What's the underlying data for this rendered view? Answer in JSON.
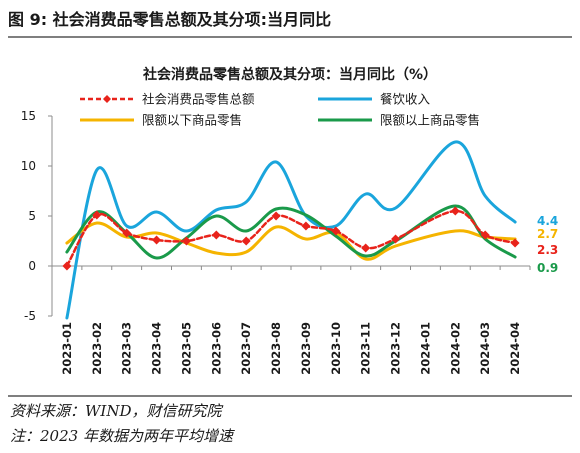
{
  "figure": {
    "title": "图 9:  社会消费品零售总额及其分项:当月同比",
    "source": "资料来源：WIND，财信研究院",
    "note": "注：2023 年数据为两年平均增速"
  },
  "chart_data": {
    "type": "line",
    "title": "社会消费品零售总额及其分项：当月同比（%）",
    "xlabel": "",
    "ylabel": "",
    "ylim": [
      -5,
      15
    ],
    "yticks": [
      -5,
      0,
      5,
      10,
      15
    ],
    "grid": false,
    "legend_position": "top",
    "categories": [
      "2023-01",
      "2023-02",
      "2023-03",
      "2023-04",
      "2023-05",
      "2023-06",
      "2023-07",
      "2023-08",
      "2023-09",
      "2023-10",
      "2023-11",
      "2023-12",
      "2024-01",
      "2024-02",
      "2024-03",
      "2024-04"
    ],
    "series": [
      {
        "name": "社会消费品零售总额",
        "color": "#e8231b",
        "style": "dashed-diamond",
        "values": [
          0,
          5.1,
          3.3,
          2.6,
          2.5,
          3.1,
          2.5,
          5.0,
          4.0,
          3.5,
          1.8,
          2.7,
          null,
          5.5,
          3.1,
          2.3
        ]
      },
      {
        "name": "餐饮收入",
        "color": "#1aa5dc",
        "style": "solid",
        "values": [
          -5.2,
          9.6,
          4.0,
          5.4,
          3.5,
          5.6,
          6.4,
          10.4,
          5.0,
          4.0,
          7.2,
          5.8,
          null,
          12.4,
          7.0,
          4.4
        ]
      },
      {
        "name": "限额以下商品零售",
        "color": "#f5b400",
        "style": "solid",
        "values": [
          2.3,
          4.3,
          2.9,
          3.3,
          2.3,
          1.3,
          1.4,
          3.9,
          2.7,
          3.3,
          0.7,
          2.0,
          null,
          3.5,
          2.9,
          2.7
        ]
      },
      {
        "name": "限额以上商品零售",
        "color": "#1a9a4a",
        "style": "solid",
        "values": [
          1.4,
          5.4,
          3.3,
          0.8,
          2.8,
          5.0,
          3.5,
          5.7,
          5.1,
          3.0,
          1.0,
          2.5,
          null,
          6.0,
          2.7,
          0.9
        ]
      }
    ],
    "end_labels": [
      {
        "text": "4.4",
        "color": "#1aa5dc"
      },
      {
        "text": "2.7",
        "color": "#f5b400"
      },
      {
        "text": "2.3",
        "color": "#e8231b"
      },
      {
        "text": "0.9",
        "color": "#1a9a4a"
      }
    ]
  }
}
